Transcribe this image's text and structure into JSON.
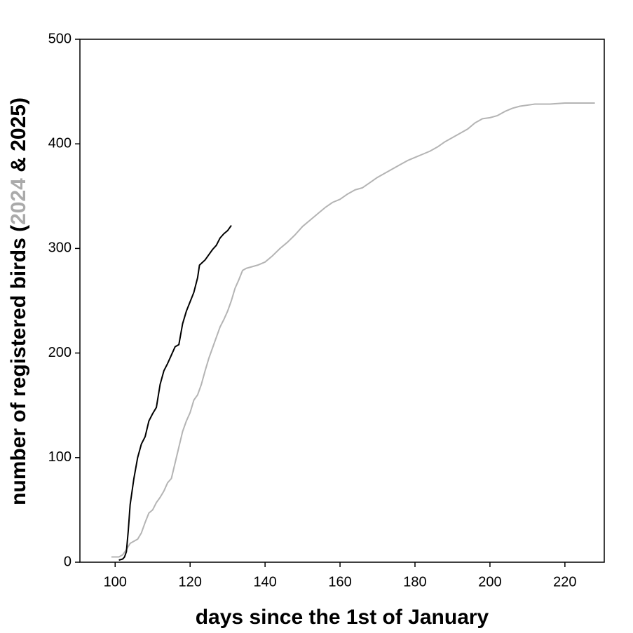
{
  "chart_data": {
    "type": "line",
    "xlabel": "days since the 1st of January",
    "ylabel_parts": [
      {
        "text": "number of registered birds (",
        "color": "#000000"
      },
      {
        "text": "2024",
        "color": "#aaaaaa"
      },
      {
        "text": " & 2025)",
        "color": "#000000"
      }
    ],
    "xlim": [
      90.6,
      230.5
    ],
    "xticks": [
      100,
      120,
      140,
      160,
      180,
      200,
      220
    ],
    "ylim": [
      0,
      500
    ],
    "yticks": [
      0,
      100,
      200,
      300,
      400,
      500
    ],
    "grid": false,
    "series": [
      {
        "color": "#b4b4b4",
        "x": [
          99,
          101,
          102,
          103,
          104,
          106,
          107,
          108,
          109,
          110,
          111,
          112,
          113,
          114,
          115,
          116,
          117,
          118,
          119,
          120,
          121,
          122,
          123,
          124,
          125,
          126,
          127,
          128,
          129,
          130,
          131,
          132,
          133,
          134,
          135,
          136,
          138,
          140,
          142,
          144,
          146,
          148,
          150,
          152,
          154,
          156,
          158,
          160,
          162,
          164,
          166,
          168,
          170,
          172,
          174,
          176,
          178,
          180,
          182,
          184,
          186,
          188,
          190,
          192,
          194,
          196,
          198,
          200,
          202,
          204,
          206,
          208,
          210,
          212,
          216,
          220,
          224,
          228
        ],
        "values": [
          5,
          5,
          7,
          12,
          18,
          22,
          28,
          38,
          47,
          50,
          57,
          62,
          68,
          76,
          80,
          95,
          110,
          125,
          135,
          143,
          155,
          160,
          170,
          183,
          195,
          205,
          215,
          225,
          232,
          240,
          250,
          262,
          270,
          279,
          281,
          282,
          284,
          287,
          293,
          300,
          306,
          313,
          321,
          327,
          333,
          339,
          344,
          347,
          352,
          356,
          358,
          363,
          368,
          372,
          376,
          380,
          384,
          387,
          390,
          393,
          397,
          402,
          406,
          410,
          414,
          420,
          424,
          425,
          427,
          431,
          434,
          436,
          437,
          438,
          438,
          439,
          439,
          439
        ]
      },
      {
        "color": "#000000",
        "x": [
          101,
          102,
          102.5,
          103,
          103.5,
          104,
          105,
          106,
          107,
          108,
          109,
          110,
          111,
          112,
          113,
          114,
          115,
          116,
          117,
          118,
          119,
          120,
          121,
          122,
          122.5,
          124,
          125,
          126,
          127,
          128,
          129,
          130,
          131
        ],
        "values": [
          2,
          3,
          5,
          10,
          30,
          55,
          80,
          100,
          113,
          120,
          135,
          142,
          148,
          170,
          183,
          190,
          198,
          206,
          208,
          228,
          240,
          249,
          258,
          272,
          284,
          289,
          294,
          299,
          303,
          310,
          314,
          317,
          322
        ]
      }
    ]
  }
}
